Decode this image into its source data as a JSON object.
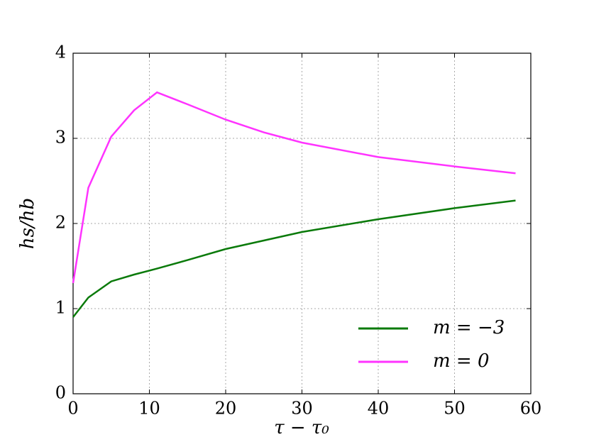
{
  "chart_data": {
    "type": "line",
    "xlabel": "τ − τ₀",
    "ylabel": "hs/hb",
    "x": [
      0,
      2,
      5,
      8,
      11,
      15,
      20,
      25,
      30,
      40,
      50,
      58
    ],
    "series": [
      {
        "name": "m = −3",
        "color": "#0a7a0a",
        "values": [
          0.9,
          1.13,
          1.32,
          1.4,
          1.47,
          1.57,
          1.7,
          1.8,
          1.9,
          2.05,
          2.18,
          2.27
        ]
      },
      {
        "name": "m = 0",
        "color": "#ff33ff",
        "values": [
          1.3,
          2.42,
          3.02,
          3.33,
          3.54,
          3.4,
          3.22,
          3.07,
          2.95,
          2.78,
          2.67,
          2.59
        ]
      }
    ],
    "xlim": [
      0,
      60
    ],
    "xticks": [
      0,
      10,
      20,
      30,
      40,
      50,
      60
    ],
    "ylim": [
      0,
      4
    ],
    "yticks": [
      0,
      1,
      2,
      3,
      4
    ],
    "grid": true,
    "legend": "lower right"
  }
}
